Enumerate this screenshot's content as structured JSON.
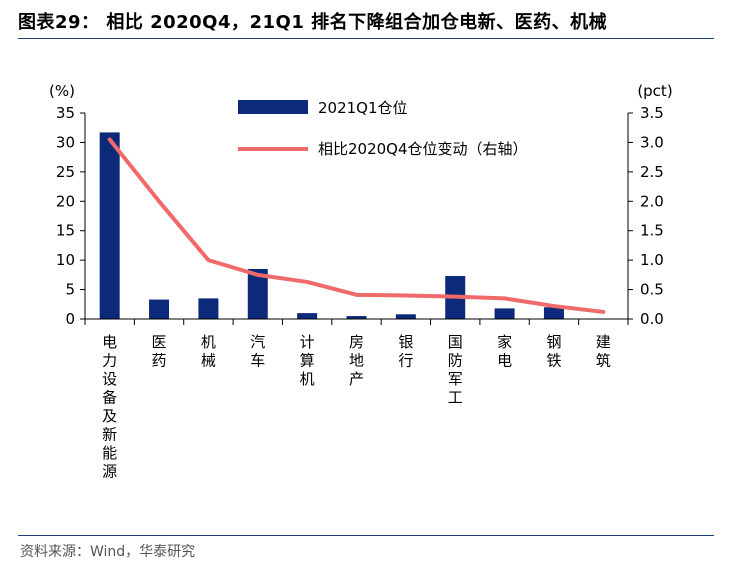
{
  "figure_title": "图表29：  相比 2020Q4，21Q1 排名下降组合加仓电新、医药、机械",
  "source": "资料来源：Wind，华泰研究",
  "colors": {
    "bar": "#0d2a7a",
    "line": "#f06a6a",
    "rule": "#1f3f7a",
    "axis": "#000000"
  },
  "chart_data": {
    "type": "bar",
    "categories": [
      "电力设备及新能源",
      "医药",
      "机械",
      "汽车",
      "计算机",
      "房地产",
      "银行",
      "国防军工",
      "家电",
      "钢铁",
      "建筑"
    ],
    "series": [
      {
        "name": "2021Q1仓位",
        "type": "bar",
        "axis": "left",
        "values": [
          31.7,
          3.3,
          3.5,
          8.5,
          1.0,
          0.5,
          0.8,
          7.3,
          1.8,
          2.0,
          0.0
        ]
      },
      {
        "name": "相比2020Q4仓位变动（右轴）",
        "type": "line",
        "axis": "right",
        "values": [
          3.05,
          2.0,
          1.0,
          0.75,
          0.63,
          0.41,
          0.4,
          0.38,
          0.35,
          0.22,
          0.12
        ]
      }
    ],
    "y_left": {
      "unit": "(%)",
      "min": 0,
      "max": 35,
      "ticks": [
        0,
        5,
        10,
        15,
        20,
        25,
        30,
        35
      ],
      "tick_labels": [
        "0",
        "5",
        "10",
        "15",
        "20",
        "25",
        "30",
        "35"
      ]
    },
    "y_right": {
      "unit": "(pct)",
      "min": 0,
      "max": 3.5,
      "ticks": [
        0,
        0.5,
        1.0,
        1.5,
        2.0,
        2.5,
        3.0,
        3.5
      ],
      "tick_labels": [
        "0.0",
        "0.5",
        "1.0",
        "1.5",
        "2.0",
        "2.5",
        "3.0",
        "3.5"
      ]
    },
    "legend_position": "top-center",
    "grid": false
  }
}
